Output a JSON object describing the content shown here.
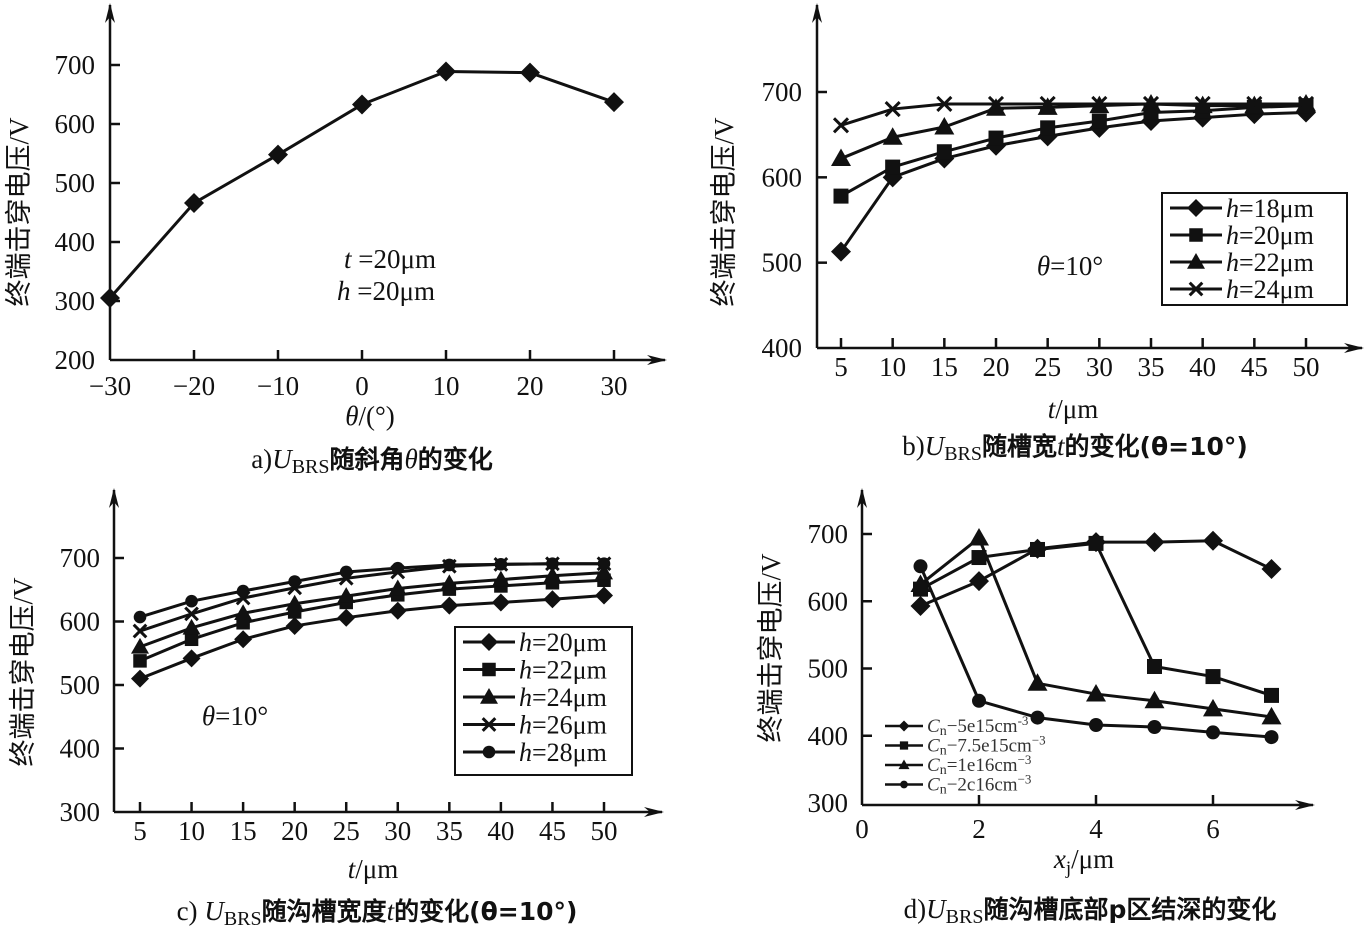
{
  "chart_data": [
    {
      "id": "a",
      "type": "line",
      "caption": {
        "prefix": "a)",
        "sym": "U",
        "sub": "BRS",
        "text": "随斜角",
        "var": "θ",
        "suffix": "的变化"
      },
      "xlabel": {
        "var": "θ",
        "unit": "/(°)"
      },
      "ylabel": "终端击穿电压/V",
      "xlim": [
        -30,
        30
      ],
      "ylim": [
        200,
        700
      ],
      "xticks": [
        -30,
        -20,
        -10,
        0,
        10,
        20,
        30
      ],
      "xtick_labels": [
        "−30",
        "−20",
        "−10",
        "0",
        "10",
        "20",
        "30"
      ],
      "yticks": [
        200,
        300,
        400,
        500,
        600,
        700
      ],
      "annotations": [
        {
          "var": "t",
          "text": " =20μm"
        },
        {
          "var": "h",
          "text": " =20μm"
        }
      ],
      "series": [
        {
          "name": "",
          "marker": "diamond",
          "x": [
            -30,
            -20,
            -10,
            0,
            10,
            20,
            30
          ],
          "values": [
            305,
            466,
            548,
            633,
            689,
            687,
            637
          ]
        }
      ],
      "legend": "none",
      "grid": false
    },
    {
      "id": "b",
      "type": "line",
      "caption": {
        "prefix": "b)",
        "sym": "U",
        "sub": "BRS",
        "text": "随槽宽",
        "var": "t",
        "suffix": "的变化(θ=10°)"
      },
      "xlabel": {
        "var": "t",
        "unit": "/μm"
      },
      "ylabel": "终端击穿电压/V",
      "ylim": [
        400,
        700
      ],
      "x": [
        5,
        10,
        15,
        20,
        25,
        30,
        35,
        40,
        45,
        50
      ],
      "yticks": [
        400,
        500,
        600,
        700
      ],
      "annotations": [
        {
          "var": "θ",
          "text": "=10°"
        }
      ],
      "series": [
        {
          "name": "h=18μm",
          "var": "h",
          "label": "=18μm",
          "marker": "diamond",
          "values": [
            513,
            600,
            622,
            637,
            648,
            658,
            666,
            670,
            674,
            676
          ]
        },
        {
          "name": "h=20μm",
          "var": "h",
          "label": "=20μm",
          "marker": "square",
          "values": [
            578,
            612,
            630,
            646,
            658,
            666,
            676,
            678,
            682,
            684
          ]
        },
        {
          "name": "h=22μm",
          "var": "h",
          "label": "=22μm",
          "marker": "triangle",
          "values": [
            622,
            647,
            659,
            681,
            682,
            684,
            686,
            684,
            684,
            686
          ]
        },
        {
          "name": "h=24μm",
          "var": "h",
          "label": "=24μm",
          "marker": "cross",
          "values": [
            661,
            680,
            686,
            686,
            686,
            686,
            686,
            686,
            686,
            686
          ]
        }
      ],
      "legend": "center-right",
      "grid": false
    },
    {
      "id": "c",
      "type": "line",
      "caption": {
        "prefix": "c) ",
        "sym": "U",
        "sub": "BRS",
        "text": "随沟槽宽度",
        "var": "t",
        "suffix": "的变化(θ=10°)"
      },
      "xlabel": {
        "var": "t",
        "unit": "/μm"
      },
      "ylabel": "终端击穿电压/V",
      "ylim": [
        300,
        700
      ],
      "x": [
        5,
        10,
        15,
        20,
        25,
        30,
        35,
        40,
        45,
        50
      ],
      "yticks": [
        300,
        400,
        500,
        600,
        700
      ],
      "annotations": [
        {
          "var": "θ",
          "text": "=10°"
        }
      ],
      "series": [
        {
          "name": "h=20μm",
          "var": "h",
          "label": "=20μm",
          "marker": "diamond",
          "values": [
            510,
            542,
            572,
            593,
            606,
            617,
            625,
            630,
            635,
            641
          ]
        },
        {
          "name": "h=22μm",
          "var": "h",
          "label": "=22μm",
          "marker": "square",
          "values": [
            538,
            572,
            598,
            615,
            630,
            642,
            651,
            656,
            661,
            665
          ]
        },
        {
          "name": "h=24μm",
          "var": "h",
          "label": "=24μm",
          "marker": "triangle",
          "values": [
            560,
            590,
            613,
            628,
            640,
            652,
            660,
            666,
            672,
            677
          ]
        },
        {
          "name": "h=26μm",
          "var": "h",
          "label": "=26μm",
          "marker": "cross",
          "values": [
            585,
            612,
            637,
            653,
            668,
            678,
            687,
            690,
            691,
            691
          ]
        },
        {
          "name": "h=28μm",
          "var": "h",
          "label": "=28μm",
          "marker": "circle",
          "values": [
            607,
            632,
            648,
            663,
            678,
            684,
            689,
            690,
            691,
            691
          ]
        }
      ],
      "legend": "center-right",
      "grid": false
    },
    {
      "id": "d",
      "type": "line",
      "caption": {
        "prefix": "d)",
        "sym": "U",
        "sub": "BRS",
        "text": "随沟槽底部p区结深的变化",
        "var": "",
        "suffix": ""
      },
      "xlabel": {
        "var": "x",
        "sub": "j",
        "unit": "/μm"
      },
      "ylabel": "终端击穿电压/V",
      "xlim": [
        0,
        7
      ],
      "ylim": [
        300,
        700
      ],
      "xticks": [
        0,
        2,
        4,
        6
      ],
      "yticks": [
        300,
        400,
        500,
        600,
        700
      ],
      "x": [
        1,
        2,
        3,
        4,
        5,
        6,
        7
      ],
      "series": [
        {
          "name": "Cn=5e15cm-3",
          "sym": "C",
          "sub": "n",
          "label": "−5e15cm",
          "sup": "-3",
          "marker": "diamond",
          "values": [
            593,
            630,
            678,
            688,
            688,
            690,
            648
          ]
        },
        {
          "name": "Cn=7.5e15cm-3",
          "sym": "C",
          "sub": "n",
          "label": "−7.5e15cm",
          "sup": "−3",
          "marker": "square",
          "values": [
            618,
            665,
            677,
            686,
            503,
            488,
            460
          ]
        },
        {
          "name": "Cn=1e16cm-3",
          "sym": "C",
          "sub": "n",
          "label": "=1e16cm",
          "sup": "−3",
          "marker": "triangle",
          "values": [
            625,
            694,
            478,
            462,
            452,
            440,
            428
          ]
        },
        {
          "name": "Cn=2e16cm-3",
          "sym": "C",
          "sub": "n",
          "label": "−2c16cm",
          "sup": "−3",
          "marker": "circle",
          "values": [
            652,
            452,
            427,
            416,
            413,
            405,
            398
          ]
        }
      ],
      "legend": "bottom-left",
      "grid": false
    }
  ]
}
